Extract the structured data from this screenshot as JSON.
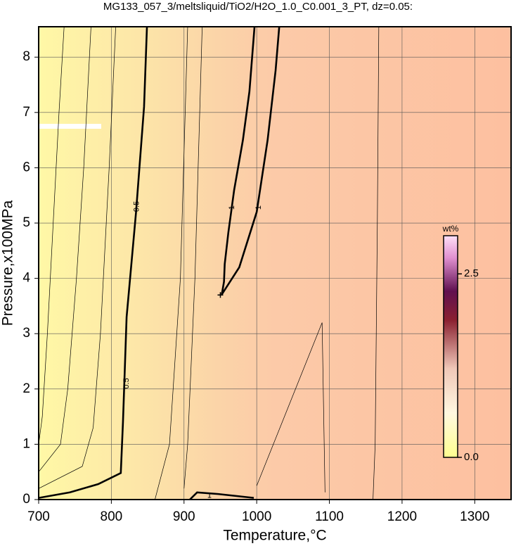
{
  "chart_data": {
    "type": "contour",
    "title": "MG133_057_3/meltsliquid/TiO2/H2O_1.0_C0.001_3_PT, dz=0.05:",
    "x_label": "Temperature,°C",
    "y_label": "Pressure,x100MPa",
    "xlim": [
      700,
      1350
    ],
    "ylim": [
      0,
      8.55
    ],
    "xticks": [
      700,
      800,
      900,
      1000,
      1100,
      1200,
      1300
    ],
    "yticks": [
      0,
      1,
      2,
      3,
      4,
      5,
      6,
      7,
      8
    ],
    "grid": true,
    "contours": [
      {
        "level": 0.5,
        "bold": true,
        "x": [
          700,
          743,
          782,
          813,
          816,
          821,
          834,
          845,
          849
        ],
        "y": [
          0.03,
          0.13,
          0.28,
          0.48,
          1.4,
          3.3,
          5.2,
          7.1,
          8.55
        ],
        "labels": [
          {
            "x": 821,
            "y": 2.1
          },
          {
            "x": 835,
            "y": 5.3
          }
        ]
      },
      {
        "level": 1,
        "bold": true,
        "x": [
          997,
          990,
          981,
          969,
          961,
          956,
          955,
          952,
          976,
          1000,
          1015,
          1026,
          1031
        ],
        "y": [
          8.55,
          7.38,
          6.5,
          5.6,
          4.83,
          4.26,
          3.94,
          3.71,
          4.2,
          5.2,
          6.5,
          7.76,
          8.55
        ],
        "labels": [
          {
            "x": 966,
            "y": 5.28
          },
          {
            "x": 1003,
            "y": 5.28
          }
        ]
      },
      {
        "level": 1,
        "bold": true,
        "x": [
          908,
          918,
          947,
          996
        ],
        "y": [
          0,
          0.13,
          0.1,
          0.03
        ],
        "labels": [
          {
            "x": 935,
            "y": 0.07
          }
        ]
      },
      {
        "level": 0.2,
        "bold": false,
        "x": [
          700,
          705,
          712,
          720,
          728,
          735
        ],
        "y": [
          1.0,
          1.5,
          3,
          5,
          7,
          8.55
        ]
      },
      {
        "level": 0.3,
        "bold": false,
        "x": [
          700,
          730,
          740,
          752,
          762,
          772
        ],
        "y": [
          0.5,
          1.0,
          2,
          4,
          6,
          8.55
        ]
      },
      {
        "level": 0.4,
        "bold": false,
        "x": [
          700,
          760,
          775,
          785,
          797,
          806
        ],
        "y": [
          0.2,
          0.6,
          1.3,
          3,
          6,
          8.55
        ]
      },
      {
        "level": 0.6,
        "bold": false,
        "x": [
          860,
          880,
          895,
          905
        ],
        "y": [
          0,
          1,
          4,
          8.55
        ]
      },
      {
        "level": 0.8,
        "bold": false,
        "x": [
          900,
          905,
          915,
          925
        ],
        "y": [
          0.2,
          1,
          4,
          8.55
        ]
      },
      {
        "level": 1.1,
        "bold": false,
        "x": [
          1000,
          1090,
          1094
        ],
        "y": [
          0.25,
          3.2,
          0.13
        ]
      },
      {
        "level": 1.05,
        "bold": false,
        "x": [
          1160,
          1163,
          1166,
          1168
        ],
        "y": [
          0,
          1,
          5,
          8.55
        ]
      }
    ],
    "marker": {
      "x": 950,
      "y": 3.7
    },
    "colorbar": {
      "label": "wt%",
      "lim": [
        0,
        3.02
      ],
      "ticks": [
        {
          "value": 0,
          "label": "0.0"
        },
        {
          "value": 2.5,
          "label": "2.5"
        }
      ]
    }
  }
}
